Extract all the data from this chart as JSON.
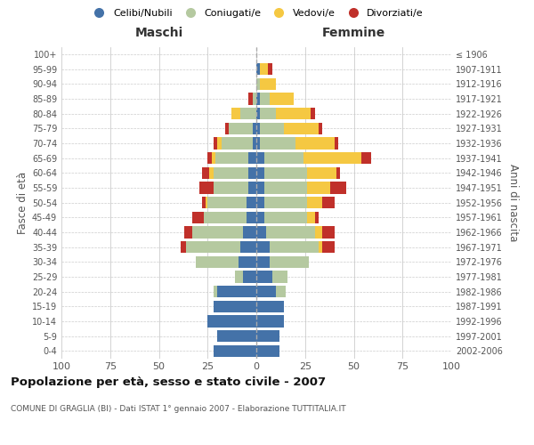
{
  "age_groups": [
    "0-4",
    "5-9",
    "10-14",
    "15-19",
    "20-24",
    "25-29",
    "30-34",
    "35-39",
    "40-44",
    "45-49",
    "50-54",
    "55-59",
    "60-64",
    "65-69",
    "70-74",
    "75-79",
    "80-84",
    "85-89",
    "90-94",
    "95-99",
    "100+"
  ],
  "birth_years": [
    "2002-2006",
    "1997-2001",
    "1992-1996",
    "1987-1991",
    "1982-1986",
    "1977-1981",
    "1972-1976",
    "1967-1971",
    "1962-1966",
    "1957-1961",
    "1952-1956",
    "1947-1951",
    "1942-1946",
    "1937-1941",
    "1932-1936",
    "1927-1931",
    "1922-1926",
    "1917-1921",
    "1912-1916",
    "1907-1911",
    "≤ 1906"
  ],
  "males_celibi": [
    22,
    20,
    25,
    22,
    20,
    7,
    9,
    8,
    7,
    5,
    5,
    4,
    4,
    4,
    2,
    2,
    0,
    0,
    0,
    0,
    0
  ],
  "males_coniugati": [
    0,
    0,
    0,
    0,
    2,
    4,
    22,
    28,
    26,
    22,
    20,
    18,
    18,
    17,
    16,
    12,
    8,
    2,
    0,
    0,
    0
  ],
  "males_vedovi": [
    0,
    0,
    0,
    0,
    0,
    0,
    0,
    0,
    0,
    0,
    1,
    0,
    2,
    2,
    2,
    0,
    5,
    0,
    0,
    0,
    0
  ],
  "males_divorziati": [
    0,
    0,
    0,
    0,
    0,
    0,
    0,
    3,
    4,
    6,
    2,
    7,
    4,
    2,
    2,
    2,
    0,
    2,
    0,
    0,
    0
  ],
  "females_nubili": [
    12,
    12,
    14,
    14,
    10,
    8,
    7,
    7,
    5,
    4,
    4,
    4,
    4,
    4,
    2,
    2,
    2,
    2,
    0,
    2,
    0
  ],
  "females_coniugate": [
    0,
    0,
    0,
    0,
    5,
    8,
    20,
    25,
    25,
    22,
    22,
    22,
    22,
    20,
    18,
    12,
    8,
    5,
    2,
    0,
    0
  ],
  "females_vedove": [
    0,
    0,
    0,
    0,
    0,
    0,
    0,
    2,
    4,
    4,
    8,
    12,
    15,
    30,
    20,
    18,
    18,
    12,
    8,
    4,
    0
  ],
  "females_divorziate": [
    0,
    0,
    0,
    0,
    0,
    0,
    0,
    6,
    6,
    2,
    6,
    8,
    2,
    5,
    2,
    2,
    2,
    0,
    0,
    2,
    0
  ],
  "colors": {
    "celibi": "#4472A8",
    "coniugati": "#B5C9A0",
    "vedovi": "#F5C842",
    "divorziati": "#C0302A"
  },
  "legend_labels": [
    "Celibi/Nubili",
    "Coniugati/e",
    "Vedovi/e",
    "Divorziati/e"
  ],
  "title": "Popolazione per età, sesso e stato civile - 2007",
  "subtitle": "COMUNE DI GRAGLIA (BI) - Dati ISTAT 1° gennaio 2007 - Elaborazione TUTTITALIA.IT",
  "ylabel_left": "Fasce di età",
  "ylabel_right": "Anni di nascita",
  "header_left": "Maschi",
  "header_right": "Femmine",
  "xlim": 100,
  "bg_color": "#ffffff",
  "grid_color": "#cccccc"
}
